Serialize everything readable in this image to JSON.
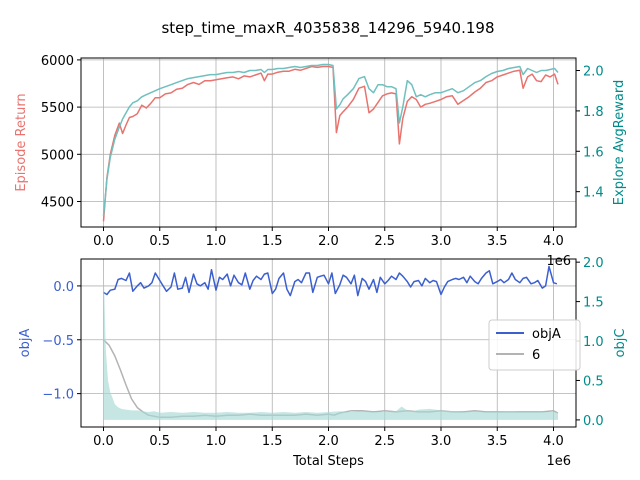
{
  "title": "step_time_maxR_4035838_14296_5940.198",
  "colors": {
    "return": "#e8736f",
    "explore": "#6fc0be",
    "explore_axis": "#008b8b",
    "objA": "#3b5fcf",
    "six": "#b3b3b3",
    "fill": "#a8d8d6",
    "grid": "#b0b0b0"
  },
  "chart_data": [
    {
      "type": "line",
      "name": "top",
      "xlabel": "",
      "x_offset_text": "1e6",
      "x_ticks": [
        "0.0",
        "0.5",
        "1.0",
        "1.5",
        "2.0",
        "2.5",
        "3.0",
        "3.5",
        "4.0"
      ],
      "xlim": [
        -0.2,
        4.2
      ],
      "ylabel": "Episode Return",
      "ylim": [
        4230,
        6020
      ],
      "y_ticks": [
        "4500",
        "5000",
        "5500",
        "6000"
      ],
      "y2label": "Explore AvgReward",
      "y2lim": [
        1.225,
        2.062
      ],
      "y2_ticks": [
        "1.4",
        "1.6",
        "1.8",
        "2.0"
      ],
      "grid": true,
      "series": [
        {
          "axis": "left",
          "x": [
            0.0,
            0.03,
            0.06,
            0.1,
            0.14,
            0.17,
            0.2,
            0.23,
            0.26,
            0.3,
            0.34,
            0.38,
            0.42,
            0.46,
            0.5,
            0.55,
            0.6,
            0.65,
            0.7,
            0.75,
            0.8,
            0.85,
            0.9,
            0.95,
            1.0,
            1.05,
            1.1,
            1.15,
            1.2,
            1.25,
            1.3,
            1.35,
            1.4,
            1.43,
            1.46,
            1.5,
            1.55,
            1.6,
            1.65,
            1.7,
            1.75,
            1.8,
            1.85,
            1.9,
            1.95,
            2.0,
            2.04,
            2.07,
            2.1,
            2.13,
            2.17,
            2.22,
            2.27,
            2.32,
            2.36,
            2.4,
            2.44,
            2.48,
            2.52,
            2.56,
            2.6,
            2.63,
            2.66,
            2.7,
            2.74,
            2.78,
            2.82,
            2.86,
            2.9,
            2.95,
            3.0,
            3.05,
            3.1,
            3.15,
            3.2,
            3.25,
            3.3,
            3.35,
            3.4,
            3.45,
            3.5,
            3.55,
            3.6,
            3.65,
            3.7,
            3.73,
            3.77,
            3.81,
            3.85,
            3.89,
            3.93,
            3.97,
            4.01,
            4.04
          ],
          "y": [
            4290,
            4750,
            5000,
            5200,
            5330,
            5220,
            5310,
            5390,
            5400,
            5430,
            5520,
            5490,
            5540,
            5600,
            5600,
            5640,
            5650,
            5690,
            5700,
            5740,
            5760,
            5740,
            5780,
            5780,
            5790,
            5800,
            5810,
            5820,
            5800,
            5830,
            5820,
            5840,
            5860,
            5780,
            5850,
            5850,
            5870,
            5880,
            5880,
            5900,
            5890,
            5910,
            5930,
            5920,
            5930,
            5930,
            5920,
            5230,
            5410,
            5450,
            5500,
            5580,
            5700,
            5720,
            5440,
            5480,
            5550,
            5620,
            5640,
            5650,
            5640,
            5110,
            5380,
            5560,
            5610,
            5580,
            5500,
            5530,
            5540,
            5560,
            5580,
            5610,
            5620,
            5530,
            5570,
            5610,
            5660,
            5700,
            5760,
            5780,
            5820,
            5840,
            5860,
            5880,
            5890,
            5700,
            5820,
            5850,
            5780,
            5770,
            5840,
            5820,
            5850,
            5740
          ]
        },
        {
          "axis": "right",
          "x": [
            0.0,
            0.03,
            0.06,
            0.1,
            0.14,
            0.17,
            0.2,
            0.23,
            0.26,
            0.3,
            0.34,
            0.38,
            0.42,
            0.46,
            0.5,
            0.55,
            0.6,
            0.65,
            0.7,
            0.75,
            0.8,
            0.85,
            0.9,
            0.95,
            1.0,
            1.05,
            1.1,
            1.15,
            1.2,
            1.25,
            1.3,
            1.35,
            1.4,
            1.43,
            1.46,
            1.5,
            1.55,
            1.6,
            1.65,
            1.7,
            1.75,
            1.8,
            1.85,
            1.9,
            1.95,
            2.0,
            2.04,
            2.07,
            2.1,
            2.13,
            2.17,
            2.22,
            2.27,
            2.32,
            2.36,
            2.4,
            2.44,
            2.48,
            2.52,
            2.56,
            2.6,
            2.63,
            2.66,
            2.7,
            2.74,
            2.78,
            2.82,
            2.86,
            2.9,
            2.95,
            3.0,
            3.05,
            3.1,
            3.15,
            3.2,
            3.25,
            3.3,
            3.35,
            3.4,
            3.45,
            3.5,
            3.55,
            3.6,
            3.65,
            3.7,
            3.73,
            3.77,
            3.81,
            3.85,
            3.89,
            3.93,
            3.97,
            4.01,
            4.04
          ],
          "y": [
            1.28,
            1.46,
            1.57,
            1.66,
            1.72,
            1.76,
            1.79,
            1.82,
            1.84,
            1.85,
            1.87,
            1.88,
            1.89,
            1.9,
            1.91,
            1.92,
            1.93,
            1.94,
            1.95,
            1.96,
            1.965,
            1.97,
            1.975,
            1.98,
            1.98,
            1.985,
            1.99,
            1.99,
            1.995,
            1.99,
            2.0,
            2.0,
            2.005,
            1.99,
            2.005,
            2.005,
            2.01,
            2.01,
            2.015,
            2.02,
            2.015,
            2.02,
            2.025,
            2.025,
            2.03,
            2.03,
            2.025,
            1.81,
            1.83,
            1.86,
            1.88,
            1.91,
            1.96,
            1.97,
            1.91,
            1.89,
            1.93,
            1.93,
            1.92,
            1.92,
            1.91,
            1.74,
            1.82,
            1.95,
            1.93,
            1.87,
            1.88,
            1.87,
            1.88,
            1.89,
            1.89,
            1.9,
            1.91,
            1.89,
            1.9,
            1.92,
            1.94,
            1.95,
            1.97,
            1.985,
            1.995,
            2.0,
            2.01,
            2.015,
            2.02,
            1.98,
            2.01,
            2.0,
            1.99,
            2.0,
            2.0,
            2.005,
            2.01,
            1.99
          ]
        }
      ]
    },
    {
      "type": "line",
      "name": "bottom",
      "xlabel": "Total Steps",
      "x_offset_text": "1e6",
      "x_ticks": [
        "0.0",
        "0.5",
        "1.0",
        "1.5",
        "2.0",
        "2.5",
        "3.0",
        "3.5",
        "4.0"
      ],
      "xlim": [
        -0.2,
        4.2
      ],
      "ylabel": "objA",
      "ylim": [
        -1.31,
        0.25
      ],
      "y_ticks": [
        "0.0",
        "−0.5",
        "−1.0"
      ],
      "y2label": "objC",
      "y2lim": [
        -0.09,
        2.04
      ],
      "y2_ticks": [
        "0.0",
        "0.5",
        "1.0",
        "1.5",
        "2.0"
      ],
      "grid": true,
      "legend": {
        "position": "center-right",
        "entries": [
          "objA",
          "6"
        ]
      },
      "series": [
        {
          "name": "objA",
          "axis": "left",
          "x": [
            0.0,
            0.03,
            0.06,
            0.1,
            0.13,
            0.16,
            0.2,
            0.23,
            0.26,
            0.3,
            0.33,
            0.36,
            0.4,
            0.43,
            0.46,
            0.5,
            0.53,
            0.56,
            0.6,
            0.63,
            0.66,
            0.7,
            0.73,
            0.76,
            0.8,
            0.83,
            0.86,
            0.9,
            0.93,
            0.96,
            1.0,
            1.03,
            1.06,
            1.1,
            1.13,
            1.16,
            1.2,
            1.23,
            1.26,
            1.3,
            1.33,
            1.36,
            1.4,
            1.43,
            1.46,
            1.5,
            1.53,
            1.56,
            1.6,
            1.63,
            1.66,
            1.7,
            1.73,
            1.76,
            1.8,
            1.83,
            1.86,
            1.9,
            1.93,
            1.96,
            2.0,
            2.03,
            2.06,
            2.1,
            2.13,
            2.16,
            2.2,
            2.23,
            2.26,
            2.3,
            2.33,
            2.36,
            2.4,
            2.43,
            2.46,
            2.5,
            2.53,
            2.56,
            2.6,
            2.63,
            2.66,
            2.7,
            2.73,
            2.76,
            2.8,
            2.83,
            2.86,
            2.9,
            2.93,
            2.96,
            3.0,
            3.03,
            3.06,
            3.1,
            3.13,
            3.16,
            3.2,
            3.23,
            3.26,
            3.3,
            3.33,
            3.36,
            3.4,
            3.43,
            3.46,
            3.5,
            3.53,
            3.56,
            3.6,
            3.63,
            3.66,
            3.7,
            3.73,
            3.76,
            3.8,
            3.83,
            3.86,
            3.9,
            3.93,
            3.96,
            4.0,
            4.03
          ],
          "y": [
            -0.06,
            -0.08,
            -0.04,
            -0.03,
            0.06,
            0.07,
            0.05,
            0.12,
            -0.05,
            0.0,
            0.03,
            -0.02,
            0.0,
            0.03,
            0.12,
            0.05,
            0.0,
            -0.05,
            -0.01,
            0.12,
            -0.03,
            -0.02,
            0.08,
            -0.06,
            0.11,
            0.02,
            0.0,
            0.03,
            -0.03,
            0.15,
            -0.04,
            0.08,
            0.06,
            0.11,
            0.0,
            0.1,
            0.03,
            0.01,
            0.12,
            -0.03,
            0.05,
            0.09,
            0.06,
            0.11,
            0.12,
            -0.07,
            -0.03,
            0.07,
            0.12,
            -0.03,
            -0.09,
            0.04,
            0.06,
            0.03,
            0.12,
            0.12,
            -0.06,
            0.08,
            0.09,
            0.1,
            0.02,
            0.12,
            -0.07,
            0.01,
            0.1,
            0.08,
            0.02,
            0.1,
            -0.09,
            0.07,
            0.04,
            -0.03,
            0.06,
            -0.06,
            0.08,
            0.02,
            0.05,
            0.09,
            0.06,
            0.12,
            0.09,
            0.04,
            -0.01,
            0.04,
            0.05,
            0.0,
            0.07,
            0.03,
            0.05,
            0.04,
            -0.08,
            -0.01,
            0.04,
            0.06,
            0.07,
            0.06,
            0.08,
            0.03,
            0.09,
            0.04,
            0.02,
            0.07,
            0.12,
            0.14,
            0.02,
            0.04,
            0.06,
            0.03,
            0.06,
            0.12,
            0.06,
            0.03,
            0.07,
            0.08,
            0.02,
            0.03,
            0.05,
            -0.02,
            0.0,
            0.18,
            0.03,
            0.02
          ]
        },
        {
          "name": "6",
          "axis": "left",
          "x": [
            0.0,
            0.05,
            0.1,
            0.15,
            0.2,
            0.25,
            0.3,
            0.35,
            0.4,
            0.5,
            0.6,
            0.7,
            0.8,
            0.9,
            1.0,
            1.1,
            1.2,
            1.3,
            1.4,
            1.5,
            1.6,
            1.7,
            1.8,
            1.9,
            2.0,
            2.05,
            2.1,
            2.2,
            2.3,
            2.4,
            2.5,
            2.6,
            2.7,
            2.8,
            2.9,
            3.0,
            3.1,
            3.2,
            3.3,
            3.4,
            3.5,
            3.6,
            3.7,
            3.8,
            3.9,
            4.0,
            4.04
          ],
          "y": [
            -0.5,
            -0.55,
            -0.65,
            -0.78,
            -0.92,
            -1.05,
            -1.13,
            -1.17,
            -1.2,
            -1.22,
            -1.22,
            -1.21,
            -1.21,
            -1.2,
            -1.21,
            -1.2,
            -1.2,
            -1.19,
            -1.2,
            -1.2,
            -1.2,
            -1.2,
            -1.19,
            -1.2,
            -1.19,
            -1.2,
            -1.18,
            -1.16,
            -1.16,
            -1.17,
            -1.16,
            -1.17,
            -1.16,
            -1.17,
            -1.17,
            -1.16,
            -1.17,
            -1.17,
            -1.16,
            -1.17,
            -1.17,
            -1.17,
            -1.17,
            -1.17,
            -1.17,
            -1.16,
            -1.18
          ]
        },
        {
          "name": "objC",
          "axis": "right",
          "type": "area",
          "x": [
            0.0,
            0.02,
            0.04,
            0.06,
            0.08,
            0.1,
            0.13,
            0.16,
            0.2,
            0.25,
            0.3,
            0.35,
            0.4,
            0.45,
            0.5,
            0.6,
            0.7,
            0.8,
            0.9,
            1.0,
            1.1,
            1.2,
            1.3,
            1.4,
            1.5,
            1.6,
            1.7,
            1.8,
            1.9,
            2.0,
            2.1,
            2.2,
            2.3,
            2.4,
            2.5,
            2.6,
            2.65,
            2.7,
            2.75,
            2.8,
            2.9,
            3.0,
            3.1,
            3.2,
            3.3,
            3.4,
            3.5,
            3.6,
            3.7,
            3.8,
            3.9,
            4.0,
            4.04
          ],
          "y": [
            2.0,
            0.9,
            0.5,
            0.35,
            0.28,
            0.2,
            0.16,
            0.14,
            0.13,
            0.12,
            0.12,
            0.11,
            0.1,
            0.11,
            0.09,
            0.1,
            0.09,
            0.1,
            0.09,
            0.09,
            0.1,
            0.09,
            0.09,
            0.1,
            0.09,
            0.1,
            0.09,
            0.1,
            0.09,
            0.1,
            0.11,
            0.1,
            0.11,
            0.1,
            0.1,
            0.11,
            0.17,
            0.12,
            0.11,
            0.13,
            0.14,
            0.12,
            0.11,
            0.1,
            0.11,
            0.1,
            0.1,
            0.11,
            0.1,
            0.1,
            0.1,
            0.1,
            0.09
          ]
        }
      ]
    }
  ]
}
